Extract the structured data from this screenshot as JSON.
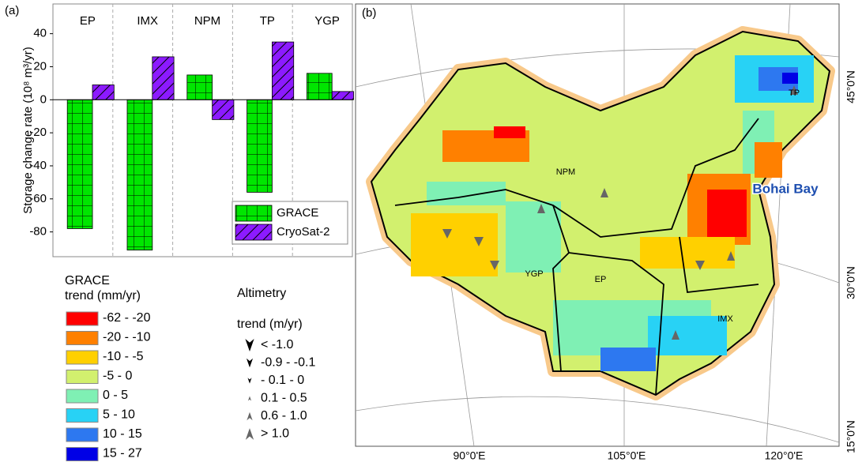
{
  "chart_data": {
    "type": "bar",
    "panel_label": "(a)",
    "y_label": "Storage change rate (10⁸ m³/yr)",
    "categories": [
      "EP",
      "IMX",
      "NPM",
      "TP",
      "YGP"
    ],
    "series": [
      {
        "name": "GRACE",
        "color": "#00e600",
        "hatch": "grid",
        "values": [
          -78,
          -91,
          15,
          -56,
          16
        ]
      },
      {
        "name": "CryoSat-2",
        "color": "#8c1aff",
        "hatch": "diagonal",
        "values": [
          9,
          26,
          -12,
          35,
          5
        ]
      }
    ],
    "ylim": [
      -95,
      58
    ],
    "yticks": [
      -80,
      -60,
      -40,
      -20,
      0,
      20,
      40
    ],
    "legend": "lower right"
  },
  "map": {
    "panel_label": "(b)",
    "regions": [
      "IMX",
      "NPM",
      "TP",
      "YGP",
      "EP"
    ],
    "callout": "Bohai Bay",
    "lat_labels": [
      "45°0'N",
      "30°0'N",
      "15°0'N"
    ],
    "lon_labels": [
      "90°0'E",
      "105°0'E",
      "120°0'E"
    ],
    "grace_legend": {
      "title": [
        "GRACE",
        "trend (mm/yr)"
      ],
      "items": [
        {
          "label": "-62 - -20",
          "color": "#ff0000"
        },
        {
          "label": "-20 - -10",
          "color": "#ff8000"
        },
        {
          "label": "-10 - -5",
          "color": "#ffd000"
        },
        {
          "label": "-5 - 0",
          "color": "#d2f06e"
        },
        {
          "label": "0 - 5",
          "color": "#7ff0b4"
        },
        {
          "label": "5 - 10",
          "color": "#28d2f5"
        },
        {
          "label": "10 - 15",
          "color": "#2d78f0"
        },
        {
          "label": "15 - 27",
          "color": "#0000e6"
        }
      ]
    },
    "altimetry_legend": {
      "title": [
        "Altimetry",
        "trend (m/yr)"
      ],
      "items": [
        "< -1.0",
        "-0.9 - -0.1",
        "- 0.1 - 0",
        "0.1 - 0.5",
        "0.6 - 1.0",
        "> 1.0"
      ]
    }
  }
}
